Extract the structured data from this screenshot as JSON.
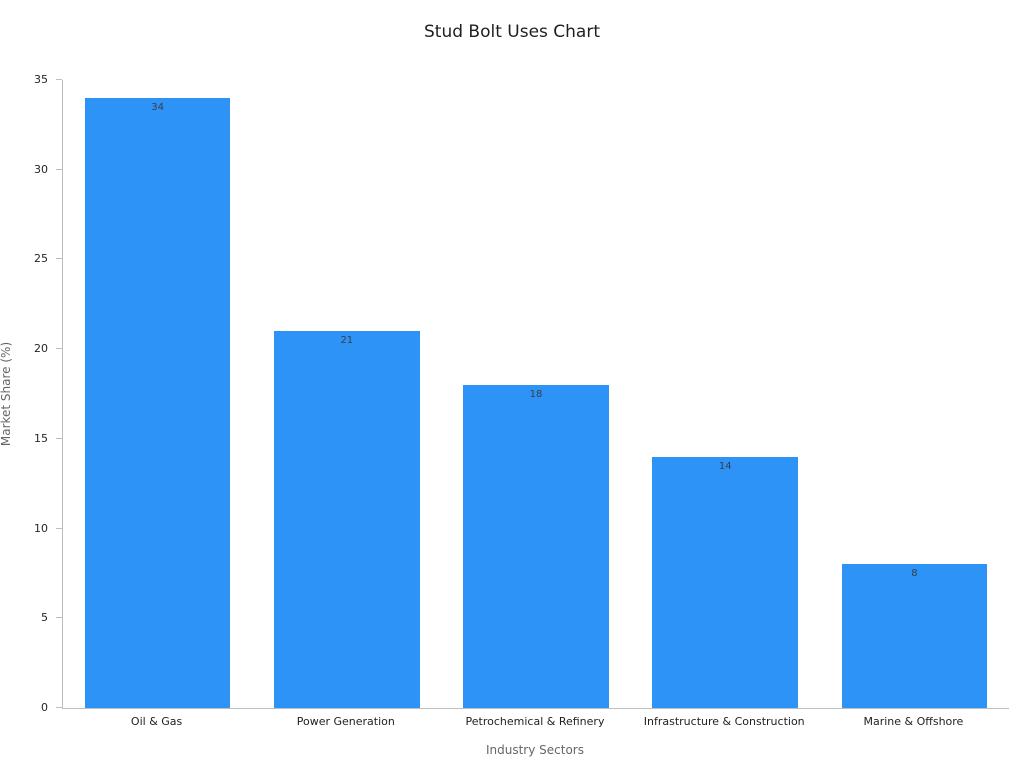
{
  "chart_data": {
    "type": "bar",
    "title": "Stud Bolt Uses Chart",
    "xlabel": "Industry Sectors",
    "ylabel": "Market Share (%)",
    "categories": [
      "Oil & Gas",
      "Power Generation",
      "Petrochemical & Refinery",
      "Infrastructure & Construction",
      "Marine & Offshore"
    ],
    "values": [
      34,
      21,
      18,
      14,
      8
    ],
    "ylim": [
      0,
      35
    ],
    "yticks": [
      0,
      5,
      10,
      15,
      20,
      25,
      30,
      35
    ],
    "grid": false,
    "legend_position": "none",
    "bar_color": "#2E93F7",
    "value_label_color": "#37404a",
    "background_color": "#ffffff"
  }
}
